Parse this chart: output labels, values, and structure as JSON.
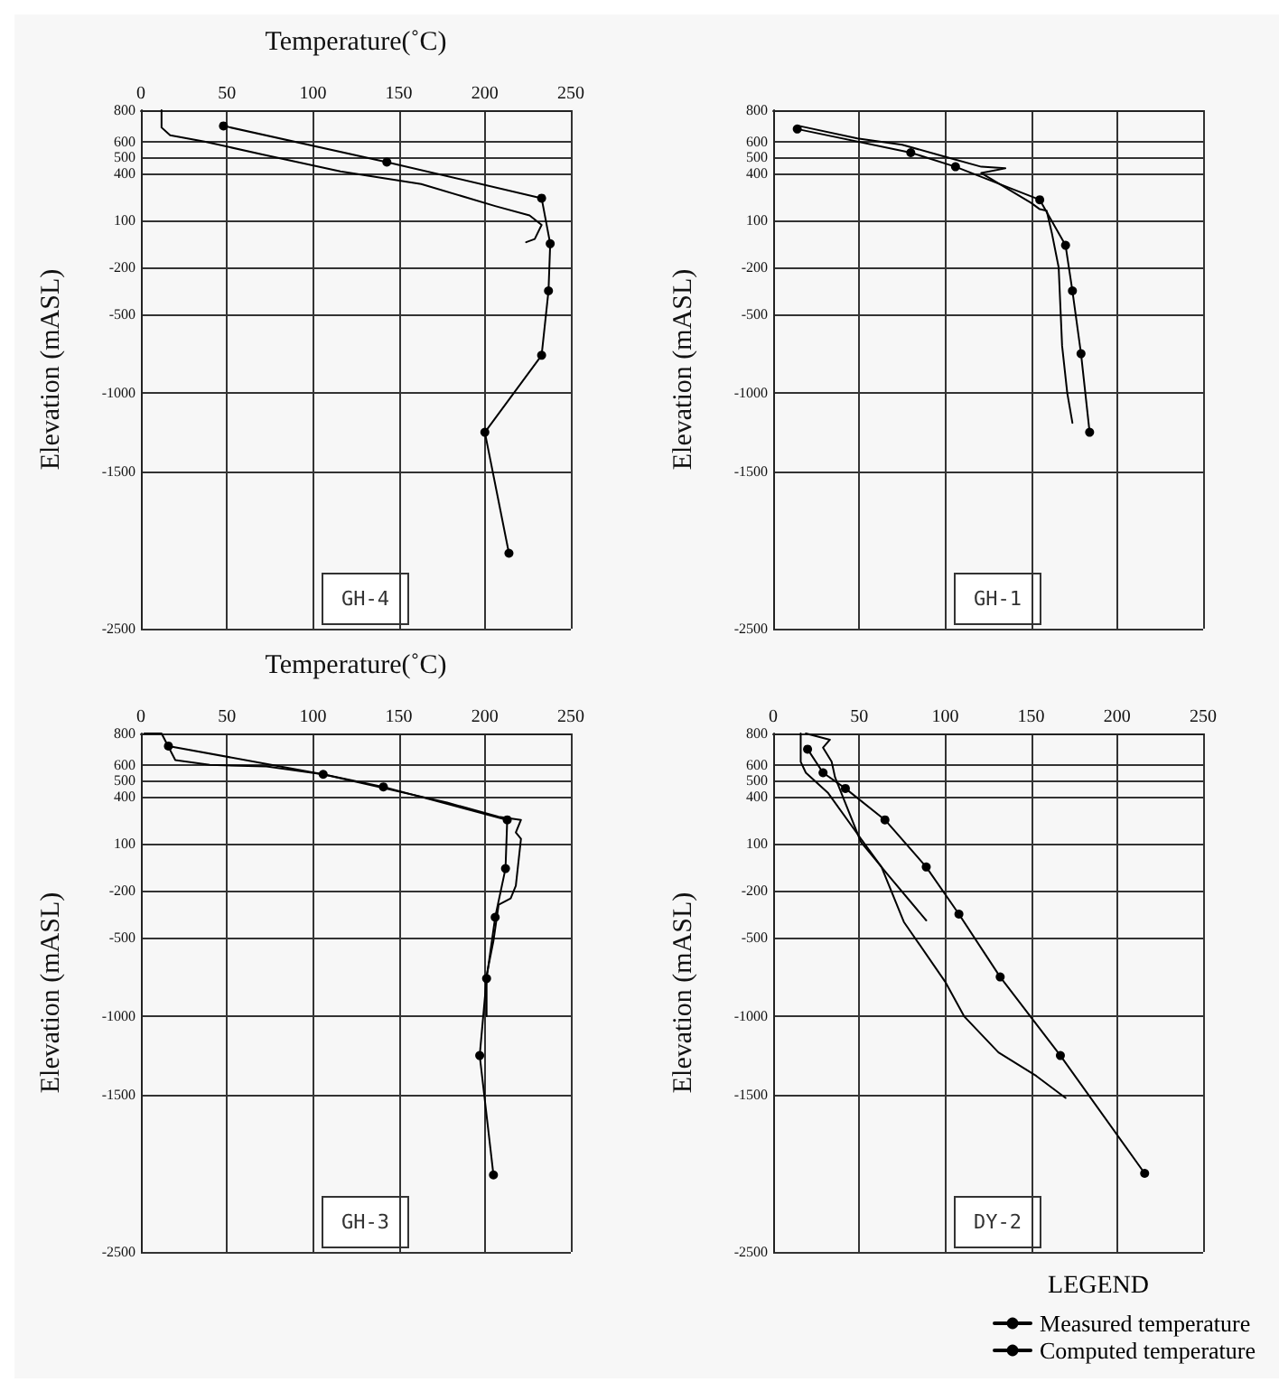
{
  "chart_data": [
    {
      "type": "line",
      "xlabel": "Temperature(˚C)",
      "ylabel": "Elevation (mASL)",
      "xlim": [
        0,
        250
      ],
      "xticks": [
        0,
        50,
        100,
        150,
        200,
        250
      ],
      "ylim": [
        -2500,
        800
      ],
      "yticks": [
        800,
        600,
        500,
        400,
        100,
        -200,
        -500,
        -1000,
        -1500,
        -2500
      ],
      "grid": true,
      "legend": false,
      "annotations": [
        "GH-4"
      ],
      "series": [
        {
          "color": "#000000",
          "marker": "circle",
          "x": [
            48,
            143,
            233,
            238,
            237,
            233,
            200,
            214
          ],
          "values": [
            700,
            470,
            240,
            -50,
            -350,
            -760,
            -1250,
            -2020
          ]
        },
        {
          "color": "#000000",
          "marker": "none",
          "x": [
            12,
            12,
            17,
            37,
            70,
            116,
            163,
            206,
            226,
            233,
            229,
            224
          ],
          "values": [
            800,
            690,
            640,
            600,
            520,
            410,
            330,
            190,
            130,
            70,
            -20,
            -40
          ]
        }
      ]
    },
    {
      "type": "line",
      "ylabel": "Elevation (mASL)",
      "xlim": [
        0,
        250
      ],
      "xticks": [
        0,
        50,
        100,
        150,
        200,
        250
      ],
      "ylim": [
        -2500,
        800
      ],
      "yticks": [
        800,
        600,
        500,
        400,
        100,
        -200,
        -500,
        -1000,
        -1500,
        -2500
      ],
      "grid": true,
      "legend": false,
      "tick_labels": "y",
      "annotations": [
        "GH-1"
      ],
      "series": [
        {
          "color": "#000000",
          "marker": "circle",
          "x": [
            14,
            80,
            106,
            155,
            170,
            174,
            179,
            184
          ],
          "values": [
            680,
            530,
            440,
            230,
            -60,
            -350,
            -750,
            -1250
          ]
        },
        {
          "color": "#000000",
          "marker": "none",
          "x": [
            15,
            49,
            75,
            98,
            121,
            135,
            121,
            150,
            155,
            159,
            162,
            166,
            168,
            171,
            174
          ],
          "values": [
            700,
            620,
            580,
            510,
            440,
            430,
            400,
            210,
            170,
            160,
            20,
            -200,
            -700,
            -1000,
            -1190
          ]
        }
      ]
    },
    {
      "type": "line",
      "xlabel": "Temperature(˚C)",
      "ylabel": "Elevation (mASL)",
      "xlim": [
        0,
        250
      ],
      "xticks": [
        0,
        50,
        100,
        150,
        200,
        250
      ],
      "ylim": [
        -2500,
        800
      ],
      "yticks": [
        800,
        600,
        500,
        400,
        100,
        -200,
        -500,
        -1000,
        -1500,
        -2500
      ],
      "grid": true,
      "legend": false,
      "annotations": [
        "GH-3"
      ],
      "series": [
        {
          "color": "#000000",
          "marker": "circle",
          "x": [
            16,
            106,
            141,
            213,
            212,
            206,
            201,
            197,
            205
          ],
          "values": [
            720,
            540,
            460,
            250,
            -60,
            -370,
            -760,
            -1250,
            -2010
          ]
        },
        {
          "color": "#000000",
          "marker": "none",
          "x": [
            2,
            12,
            20,
            40,
            73,
            106,
            142,
            178,
            208,
            221,
            218,
            221,
            218,
            215,
            208,
            205,
            201,
            201
          ],
          "values": [
            800,
            800,
            630,
            600,
            590,
            540,
            450,
            360,
            270,
            250,
            170,
            130,
            -170,
            -250,
            -290,
            -520,
            -740,
            -1000
          ]
        }
      ]
    },
    {
      "type": "line",
      "ylabel": "Elevation (mASL)",
      "xlim": [
        0,
        250
      ],
      "xticks": [
        0,
        50,
        100,
        150,
        200,
        250
      ],
      "ylim": [
        -2500,
        800
      ],
      "yticks": [
        800,
        600,
        500,
        400,
        100,
        -200,
        -500,
        -1000,
        -1500,
        -2500
      ],
      "grid": true,
      "legend": "bottom right",
      "legend_title": "LEGEND",
      "annotations": [
        "DY-2"
      ],
      "series": [
        {
          "name": "Measured temperature",
          "color": "#000000",
          "marker": "circle",
          "x": [
            20,
            29,
            42,
            65,
            89,
            108,
            132,
            167,
            216
          ],
          "values": [
            700,
            550,
            450,
            250,
            -50,
            -350,
            -750,
            -1250,
            -2000
          ]
        },
        {
          "name": "Computed temperature",
          "color": "#000000",
          "marker": "none",
          "x": [
            19,
            33,
            29,
            34,
            36,
            51,
            60,
            66,
            89
          ],
          "values": [
            800,
            760,
            710,
            620,
            520,
            110,
            -10,
            -90,
            -390
          ]
        },
        {
          "color": "#000000",
          "marker": "none",
          "x": [
            16,
            16,
            19,
            32,
            51,
            63,
            76,
            100,
            111,
            131,
            153,
            170
          ],
          "values": [
            800,
            620,
            550,
            420,
            130,
            -50,
            -400,
            -780,
            -1000,
            -1230,
            -1380,
            -1520
          ]
        }
      ]
    }
  ]
}
